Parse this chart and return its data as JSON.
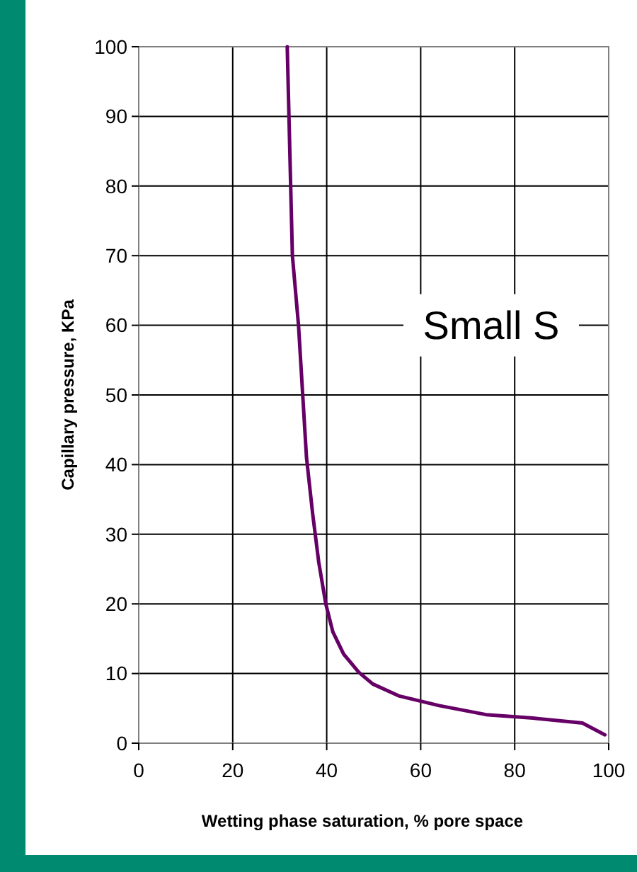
{
  "chart_data": {
    "type": "line",
    "xlabel": "Wetting phase saturation, % pore space",
    "ylabel": "Capillary pressure, KPa",
    "xlim": [
      0,
      100
    ],
    "xticks": [
      0,
      20,
      40,
      60,
      80,
      100
    ],
    "ylim": [
      0,
      100
    ],
    "yticks": [
      0,
      10,
      20,
      30,
      40,
      50,
      60,
      70,
      80,
      90,
      100
    ],
    "grid": true,
    "annotations": [
      "Small S"
    ],
    "series": [
      {
        "color": "#660066",
        "x": [
          31.6,
          32.7,
          34.0,
          35.7,
          37.0,
          38.3,
          39.8,
          41.3,
          43.6,
          46.8,
          49.8,
          55.3,
          63.9,
          73.9,
          83.9,
          94.4,
          99.2
        ],
        "values": [
          100,
          70,
          60,
          41,
          33,
          26,
          20,
          16,
          12.8,
          10.2,
          8.5,
          6.8,
          5.4,
          4.1,
          3.6,
          2.9,
          1.2
        ]
      }
    ]
  }
}
